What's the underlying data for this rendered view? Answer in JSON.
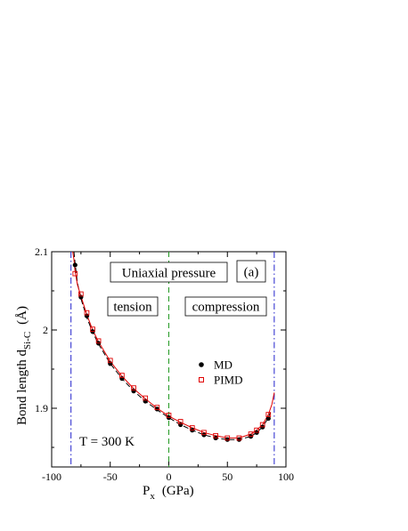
{
  "chart_data": {
    "type": "scatter",
    "xlabel": {
      "main": "P",
      "sub": "x",
      "unit": "(GPa)"
    },
    "ylabel": {
      "main": "Bond length  d",
      "sub": "Si-C",
      "unit": "(Å)"
    },
    "xlim": [
      -100,
      100
    ],
    "ylim": [
      1.825,
      2.1
    ],
    "xticks": [
      -100,
      -50,
      0,
      50,
      100
    ],
    "xtick_labels": [
      "-100",
      "-50",
      "0",
      "50",
      "100"
    ],
    "yticks": [
      1.9,
      2.0,
      2.1
    ],
    "ytick_labels": [
      "1.9",
      "2",
      "2.1"
    ],
    "grid": false,
    "legend_position": "right",
    "annotations": {
      "title_box": "Uniaxial pressure",
      "panel": "(a)",
      "tension": "tension",
      "compression": "compression",
      "temperature": "T = 300 K"
    },
    "series": [
      {
        "name": "MD",
        "marker": "filled-circle",
        "color": "#000000",
        "x": [
          -80,
          -75,
          -70,
          -65,
          -60,
          -50,
          -40,
          -30,
          -20,
          -10,
          0,
          10,
          20,
          30,
          40,
          50,
          60,
          70,
          75,
          80,
          85
        ],
        "y": [
          2.083,
          2.042,
          2.018,
          1.998,
          1.983,
          1.957,
          1.938,
          1.922,
          1.909,
          1.899,
          1.888,
          1.879,
          1.872,
          1.866,
          1.862,
          1.86,
          1.86,
          1.864,
          1.869,
          1.876,
          1.887
        ]
      },
      {
        "name": "PIMD",
        "marker": "open-square",
        "color": "#e00000",
        "x": [
          -80,
          -75,
          -70,
          -65,
          -60,
          -50,
          -40,
          -30,
          -20,
          -10,
          0,
          10,
          20,
          30,
          40,
          50,
          60,
          70,
          75,
          80,
          85
        ],
        "y": [
          2.072,
          2.046,
          2.022,
          2.001,
          1.986,
          1.961,
          1.942,
          1.926,
          1.913,
          1.901,
          1.891,
          1.883,
          1.875,
          1.869,
          1.865,
          1.862,
          1.862,
          1.867,
          1.872,
          1.879,
          1.892
        ]
      }
    ],
    "fit_lines": [
      {
        "name": "MD fit",
        "style": "dashed",
        "color": "#000000",
        "x": [
          -81,
          -80,
          -78,
          -75,
          -70,
          -65,
          -60,
          -50,
          -40,
          -30,
          -20,
          -10,
          0,
          10,
          20,
          30,
          40,
          50,
          60,
          70,
          75,
          80,
          85,
          87
        ],
        "y": [
          2.1,
          2.085,
          2.06,
          2.04,
          2.016,
          1.997,
          1.982,
          1.957,
          1.938,
          1.922,
          1.909,
          1.898,
          1.888,
          1.879,
          1.872,
          1.866,
          1.862,
          1.86,
          1.86,
          1.864,
          1.869,
          1.876,
          1.888,
          1.896
        ]
      },
      {
        "name": "PIMD fit",
        "style": "solid",
        "color": "#e00000",
        "x": [
          -82,
          -81,
          -80,
          -78,
          -75,
          -70,
          -65,
          -60,
          -50,
          -40,
          -30,
          -20,
          -10,
          0,
          10,
          20,
          30,
          40,
          50,
          60,
          70,
          75,
          80,
          85,
          88,
          90
        ],
        "y": [
          2.1,
          2.09,
          2.075,
          2.058,
          2.043,
          2.02,
          2.0,
          1.985,
          1.96,
          1.941,
          1.925,
          1.912,
          1.9,
          1.89,
          1.882,
          1.875,
          1.869,
          1.865,
          1.862,
          1.862,
          1.867,
          1.872,
          1.879,
          1.892,
          1.905,
          1.92
        ]
      }
    ],
    "reference_lines": [
      {
        "name": "spinodal-tension",
        "orientation": "vertical",
        "x": -83.5,
        "style": "dash-dot",
        "color": "#2222cc"
      },
      {
        "name": "zero-pressure",
        "orientation": "vertical",
        "x": 0,
        "style": "dashed",
        "color": "#229922"
      },
      {
        "name": "spinodal-compression",
        "orientation": "vertical",
        "x": 90,
        "style": "dash-dot",
        "color": "#2222cc"
      }
    ]
  }
}
